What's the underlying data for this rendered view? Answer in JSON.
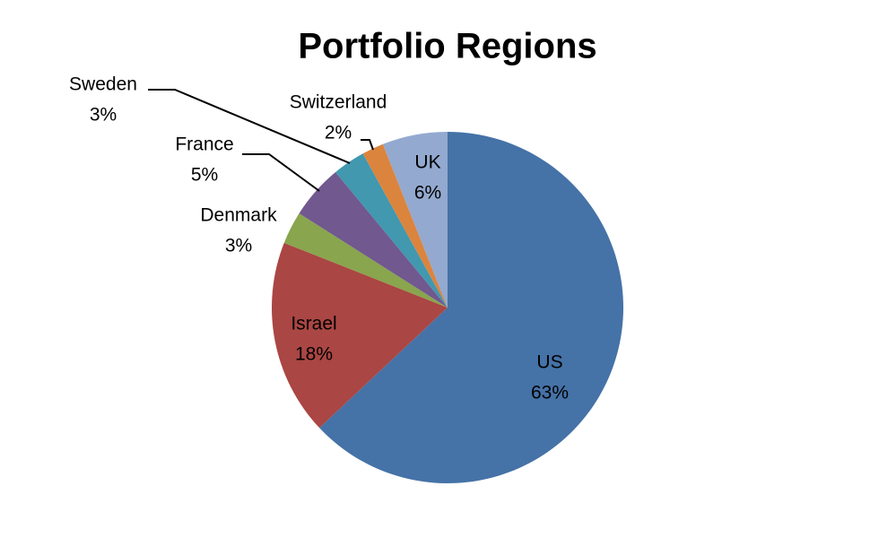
{
  "chart_data": {
    "type": "pie",
    "title": "Portfolio Regions",
    "categories": [
      "US",
      "Israel",
      "Denmark",
      "France",
      "Sweden",
      "Switzerland",
      "UK"
    ],
    "values": [
      63,
      18,
      3,
      5,
      3,
      2,
      6
    ],
    "value_labels": [
      "63%",
      "18%",
      "3%",
      "5%",
      "3%",
      "2%",
      "6%"
    ],
    "colors": [
      "#4572a7",
      "#aa4643",
      "#89a54e",
      "#71588f",
      "#4198af",
      "#db843d",
      "#93a9cf"
    ]
  }
}
